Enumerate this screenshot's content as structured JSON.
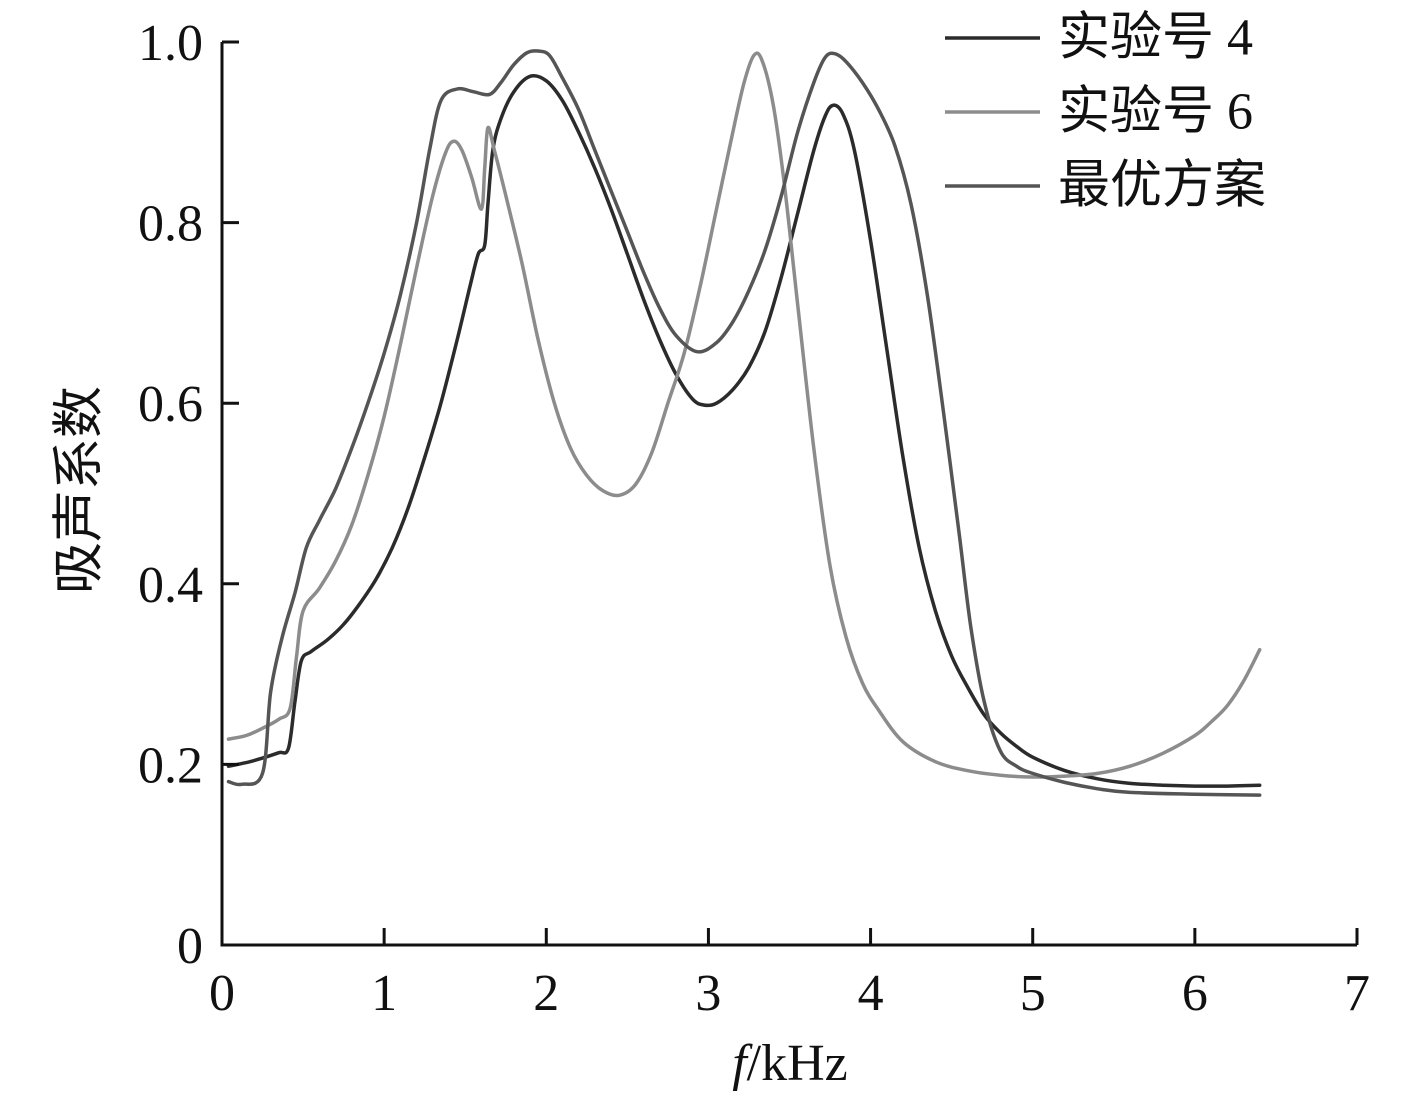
{
  "chart_data": {
    "type": "line",
    "xlabel": "f/kHz",
    "ylabel": "吸声系数",
    "xlim": [
      0,
      7
    ],
    "ylim": [
      0,
      1.0
    ],
    "x_ticks": [
      "0",
      "1",
      "2",
      "3",
      "4",
      "5",
      "6",
      "7"
    ],
    "y_ticks": [
      "0",
      "0.2",
      "0.4",
      "0.6",
      "0.8",
      "1.0"
    ],
    "grid": false,
    "legend_position": "top-right",
    "series": [
      {
        "name": "实验号 4",
        "color": "#2b2b2b",
        "x": [
          0.04,
          0.15,
          0.25,
          0.35,
          0.41,
          0.45,
          0.49,
          0.55,
          0.65,
          0.75,
          0.85,
          0.95,
          1.05,
          1.15,
          1.25,
          1.35,
          1.45,
          1.53,
          1.58,
          1.62,
          1.64,
          1.67,
          1.72,
          1.8,
          1.9,
          2.0,
          2.1,
          2.2,
          2.3,
          2.4,
          2.5,
          2.6,
          2.7,
          2.8,
          2.9,
          2.97,
          3.05,
          3.15,
          3.25,
          3.35,
          3.45,
          3.55,
          3.65,
          3.72,
          3.77,
          3.83,
          3.9,
          4.0,
          4.1,
          4.2,
          4.3,
          4.4,
          4.5,
          4.6,
          4.7,
          4.8,
          4.9,
          5.0,
          5.2,
          5.4,
          5.6,
          5.8,
          6.0,
          6.2,
          6.4
        ],
        "y": [
          0.198,
          0.202,
          0.207,
          0.213,
          0.218,
          0.27,
          0.315,
          0.325,
          0.338,
          0.355,
          0.378,
          0.405,
          0.44,
          0.485,
          0.54,
          0.6,
          0.67,
          0.73,
          0.765,
          0.775,
          0.82,
          0.88,
          0.915,
          0.945,
          0.962,
          0.957,
          0.935,
          0.9,
          0.86,
          0.815,
          0.765,
          0.715,
          0.67,
          0.632,
          0.605,
          0.598,
          0.6,
          0.615,
          0.64,
          0.68,
          0.74,
          0.81,
          0.88,
          0.918,
          0.93,
          0.92,
          0.88,
          0.78,
          0.66,
          0.54,
          0.44,
          0.37,
          0.32,
          0.285,
          0.255,
          0.235,
          0.22,
          0.208,
          0.193,
          0.184,
          0.179,
          0.177,
          0.176,
          0.176,
          0.177
        ]
      },
      {
        "name": "实验号 6",
        "color": "#8c8c8c",
        "x": [
          0.04,
          0.15,
          0.25,
          0.35,
          0.42,
          0.46,
          0.5,
          0.6,
          0.7,
          0.8,
          0.9,
          1.0,
          1.1,
          1.2,
          1.3,
          1.38,
          1.43,
          1.48,
          1.54,
          1.6,
          1.62,
          1.64,
          1.68,
          1.75,
          1.85,
          1.95,
          2.05,
          2.15,
          2.25,
          2.35,
          2.45,
          2.55,
          2.65,
          2.75,
          2.85,
          2.95,
          3.05,
          3.15,
          3.22,
          3.28,
          3.33,
          3.4,
          3.47,
          3.55,
          3.65,
          3.75,
          3.85,
          3.95,
          4.05,
          4.2,
          4.4,
          4.6,
          4.8,
          5.0,
          5.2,
          5.4,
          5.6,
          5.8,
          6.0,
          6.1,
          6.2,
          6.3,
          6.4
        ],
        "y": [
          0.228,
          0.232,
          0.24,
          0.25,
          0.262,
          0.32,
          0.37,
          0.395,
          0.425,
          0.465,
          0.52,
          0.585,
          0.665,
          0.75,
          0.83,
          0.878,
          0.89,
          0.88,
          0.85,
          0.815,
          0.86,
          0.905,
          0.88,
          0.83,
          0.755,
          0.67,
          0.6,
          0.55,
          0.52,
          0.503,
          0.498,
          0.51,
          0.545,
          0.6,
          0.655,
          0.73,
          0.815,
          0.9,
          0.955,
          0.985,
          0.98,
          0.93,
          0.84,
          0.71,
          0.55,
          0.42,
          0.34,
          0.29,
          0.26,
          0.225,
          0.203,
          0.193,
          0.188,
          0.186,
          0.187,
          0.19,
          0.198,
          0.212,
          0.232,
          0.247,
          0.265,
          0.292,
          0.327
        ]
      },
      {
        "name": "最优方案",
        "color": "#555555",
        "x": [
          0.04,
          0.12,
          0.25,
          0.3,
          0.37,
          0.45,
          0.52,
          0.6,
          0.7,
          0.8,
          0.9,
          1.0,
          1.1,
          1.2,
          1.28,
          1.35,
          1.45,
          1.55,
          1.65,
          1.72,
          1.8,
          1.88,
          1.95,
          2.02,
          2.1,
          2.2,
          2.3,
          2.4,
          2.5,
          2.6,
          2.7,
          2.8,
          2.93,
          3.05,
          3.15,
          3.25,
          3.35,
          3.45,
          3.55,
          3.65,
          3.72,
          3.78,
          3.85,
          3.95,
          4.05,
          4.15,
          4.25,
          4.35,
          4.45,
          4.55,
          4.62,
          4.7,
          4.8,
          4.9,
          5.0,
          5.2,
          5.4,
          5.6,
          6.0,
          6.4
        ],
        "y": [
          0.181,
          0.178,
          0.19,
          0.28,
          0.34,
          0.39,
          0.44,
          0.47,
          0.505,
          0.55,
          0.6,
          0.655,
          0.72,
          0.8,
          0.88,
          0.935,
          0.948,
          0.945,
          0.942,
          0.955,
          0.975,
          0.988,
          0.99,
          0.985,
          0.96,
          0.925,
          0.88,
          0.835,
          0.79,
          0.745,
          0.705,
          0.675,
          0.657,
          0.667,
          0.69,
          0.725,
          0.77,
          0.83,
          0.9,
          0.955,
          0.983,
          0.987,
          0.978,
          0.955,
          0.925,
          0.885,
          0.82,
          0.72,
          0.59,
          0.45,
          0.35,
          0.27,
          0.215,
          0.198,
          0.19,
          0.18,
          0.173,
          0.169,
          0.167,
          0.166
        ]
      }
    ]
  }
}
